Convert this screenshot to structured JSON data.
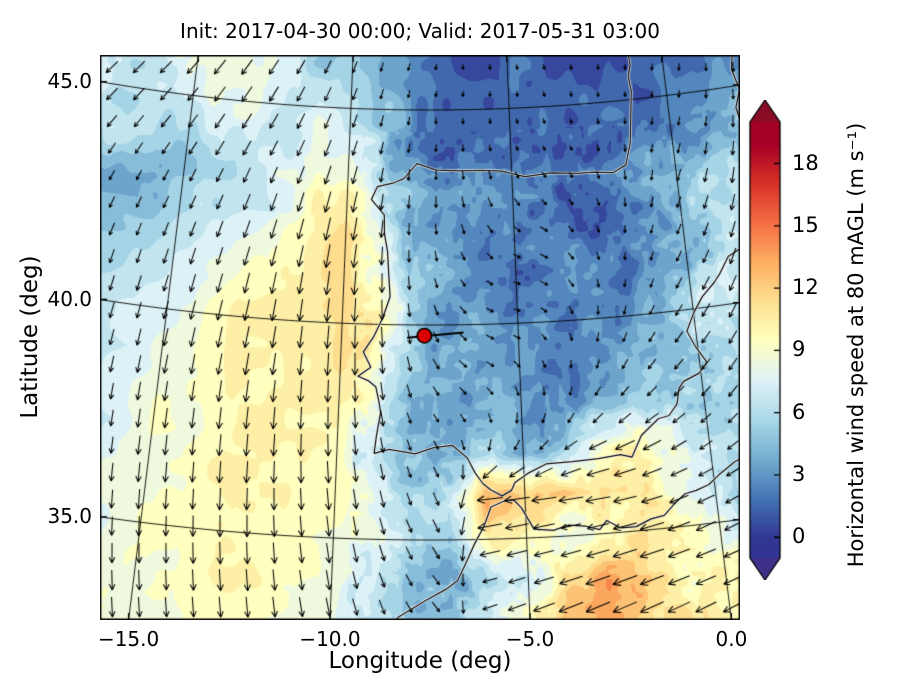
{
  "title": "Init: 2017-04-30 00:00; Valid: 2017-05-31 03:00",
  "axes": {
    "xlabel": "Longitude (deg)",
    "ylabel": "Latitude (deg)",
    "xticks": {
      "values": [
        -15,
        -10,
        -5,
        0
      ],
      "labels": [
        "−15.0",
        "−10.0",
        "−5.0",
        "0.0"
      ]
    },
    "yticks": {
      "values": [
        35,
        40,
        45
      ],
      "labels": [
        "35.0",
        "40.0",
        "45.0"
      ]
    }
  },
  "colorbar": {
    "label": "Horizontal wind speed at 80 mAGL (m s⁻¹)",
    "ticks": [
      0,
      3,
      6,
      9,
      12,
      15,
      18
    ],
    "tick_labels": [
      "0",
      "3",
      "6",
      "9",
      "12",
      "15",
      "18"
    ],
    "vmin": 0,
    "vmax": 19,
    "under_color": "#413089",
    "over_color": "#8a0b25",
    "colormap_stops": [
      [
        0.0,
        "#313695"
      ],
      [
        0.1,
        "#4575b4"
      ],
      [
        0.2,
        "#74add1"
      ],
      [
        0.3,
        "#abd9e9"
      ],
      [
        0.4,
        "#e0f3f8"
      ],
      [
        0.5,
        "#ffffbf"
      ],
      [
        0.6,
        "#fee090"
      ],
      [
        0.7,
        "#fdae61"
      ],
      [
        0.8,
        "#f46d43"
      ],
      [
        0.9,
        "#d73027"
      ],
      [
        1.0,
        "#a50026"
      ]
    ]
  },
  "marker": {
    "lon": -7.66,
    "lat": 39.75,
    "color": "#dd0000"
  },
  "chart_data": {
    "type": "heatmap",
    "overlay": "quiver",
    "title": "Init: 2017-04-30 00:00; Valid: 2017-05-31 03:00",
    "xlabel": "Longitude (deg)",
    "ylabel": "Latitude (deg)",
    "units": "m s−1",
    "xlim": [
      -16.5,
      2.5
    ],
    "ylim": [
      32.5,
      46.0
    ],
    "colorbar_range": [
      0,
      19
    ],
    "x": [
      -16,
      -15,
      -14,
      -13,
      -12,
      -11,
      -10,
      -9,
      -8,
      -7,
      -6,
      -5,
      -4,
      -3,
      -2,
      -1,
      0,
      1,
      2,
      3
    ],
    "y": [
      32,
      33,
      34,
      35,
      36,
      37,
      38,
      39,
      40,
      41,
      42,
      43,
      44,
      45,
      46
    ],
    "values": [
      [
        9,
        9,
        9,
        9,
        9,
        9,
        8,
        7,
        5,
        5,
        6,
        9,
        12,
        12,
        11,
        10,
        9,
        8,
        8,
        8
      ],
      [
        9,
        9,
        9,
        9,
        9,
        9,
        8,
        7,
        5,
        5,
        7,
        10,
        13,
        13,
        12,
        11,
        10,
        9,
        8,
        8
      ],
      [
        9,
        9,
        9,
        10,
        10,
        9,
        9,
        7,
        5,
        4,
        6,
        8,
        11,
        13,
        12,
        10,
        9,
        8,
        7,
        7
      ],
      [
        8,
        9,
        9,
        10,
        10,
        9,
        9,
        8,
        6,
        6,
        11,
        10,
        8,
        10,
        12,
        11,
        9,
        7,
        6,
        6
      ],
      [
        8,
        9,
        9,
        10,
        10,
        10,
        10,
        8,
        5,
        6,
        13,
        12,
        12,
        12,
        10,
        8,
        7,
        6,
        5,
        5
      ],
      [
        7,
        9,
        9,
        10,
        10,
        10,
        10,
        7,
        4,
        3,
        5,
        4,
        6,
        9,
        10,
        8,
        6,
        5,
        5,
        5
      ],
      [
        7,
        9,
        9,
        10,
        10,
        10,
        10,
        8,
        4,
        3,
        3,
        4,
        3,
        4,
        5,
        6,
        5,
        6,
        6,
        6
      ],
      [
        7,
        8,
        9,
        10,
        10,
        10,
        11,
        9,
        6,
        4,
        3,
        3,
        2,
        3,
        4,
        5,
        6,
        6,
        7,
        7
      ],
      [
        7,
        8,
        9,
        10,
        10,
        10,
        11,
        10,
        5,
        4,
        3,
        2,
        2,
        3,
        3,
        4,
        6,
        7,
        7,
        7
      ],
      [
        6,
        7,
        8,
        9,
        10,
        10,
        12,
        9,
        5,
        3,
        2,
        2,
        3,
        3,
        2,
        3,
        5,
        7,
        8,
        8
      ],
      [
        5,
        6,
        7,
        8,
        9,
        10,
        12,
        8,
        4,
        4,
        3,
        3,
        3,
        2,
        2,
        3,
        4,
        6,
        8,
        8
      ],
      [
        4,
        5,
        6,
        7,
        8,
        9,
        10,
        7,
        5,
        4,
        4,
        3,
        2,
        2,
        3,
        4,
        5,
        6,
        7,
        7
      ],
      [
        6,
        6,
        7,
        7,
        7,
        8,
        7,
        5,
        3,
        2,
        2,
        1,
        1,
        1,
        2,
        2,
        3,
        4,
        5,
        6
      ],
      [
        7,
        7,
        8,
        8,
        7,
        7,
        5,
        4,
        2,
        1,
        1,
        1,
        1,
        1,
        1,
        1,
        2,
        2,
        3,
        4
      ],
      [
        7,
        8,
        8,
        8,
        7,
        6,
        5,
        3,
        2,
        1,
        1,
        1,
        1,
        1,
        1,
        1,
        2,
        2,
        3,
        3
      ]
    ],
    "quiver_dir_toward_deg": [
      [
        170,
        170,
        170,
        170,
        170,
        168,
        165,
        160,
        150,
        140,
        250,
        250,
        250,
        250,
        250,
        250,
        250,
        250,
        250,
        250
      ],
      [
        170,
        170,
        170,
        170,
        170,
        168,
        165,
        160,
        150,
        140,
        250,
        250,
        250,
        250,
        250,
        250,
        250,
        250,
        250,
        250
      ],
      [
        172,
        172,
        172,
        172,
        172,
        170,
        168,
        162,
        150,
        140,
        255,
        255,
        255,
        255,
        255,
        255,
        255,
        250,
        250,
        250
      ],
      [
        175,
        175,
        175,
        175,
        175,
        172,
        170,
        165,
        155,
        150,
        260,
        260,
        260,
        260,
        260,
        255,
        250,
        250,
        245,
        245
      ],
      [
        178,
        178,
        178,
        178,
        178,
        175,
        172,
        168,
        160,
        155,
        265,
        265,
        265,
        265,
        260,
        255,
        250,
        245,
        240,
        240
      ],
      [
        180,
        180,
        180,
        180,
        180,
        178,
        175,
        170,
        160,
        150,
        200,
        220,
        240,
        250,
        250,
        245,
        240,
        235,
        230,
        230
      ],
      [
        182,
        182,
        182,
        182,
        182,
        180,
        178,
        172,
        160,
        140,
        150,
        180,
        200,
        220,
        230,
        235,
        230,
        225,
        220,
        220
      ],
      [
        185,
        185,
        185,
        185,
        185,
        182,
        180,
        175,
        165,
        140,
        120,
        140,
        170,
        200,
        215,
        225,
        225,
        220,
        215,
        215
      ],
      [
        188,
        188,
        188,
        188,
        186,
        184,
        182,
        178,
        170,
        150,
        120,
        110,
        140,
        180,
        200,
        215,
        220,
        215,
        210,
        210
      ],
      [
        190,
        190,
        190,
        190,
        188,
        186,
        184,
        180,
        175,
        160,
        130,
        110,
        120,
        160,
        190,
        205,
        215,
        210,
        205,
        205
      ],
      [
        195,
        195,
        195,
        194,
        192,
        190,
        188,
        184,
        180,
        170,
        150,
        130,
        120,
        150,
        180,
        200,
        210,
        205,
        200,
        200
      ],
      [
        200,
        200,
        200,
        198,
        196,
        194,
        192,
        188,
        184,
        178,
        165,
        150,
        140,
        150,
        170,
        190,
        205,
        200,
        195,
        195
      ],
      [
        210,
        208,
        206,
        204,
        202,
        200,
        196,
        192,
        188,
        182,
        175,
        165,
        155,
        160,
        175,
        190,
        200,
        195,
        190,
        190
      ],
      [
        215,
        212,
        210,
        208,
        205,
        202,
        198,
        194,
        190,
        185,
        180,
        170,
        165,
        170,
        180,
        190,
        195,
        190,
        185,
        185
      ],
      [
        218,
        215,
        212,
        210,
        208,
        204,
        200,
        196,
        192,
        188,
        182,
        175,
        170,
        175,
        182,
        190,
        192,
        188,
        182,
        182
      ]
    ]
  }
}
